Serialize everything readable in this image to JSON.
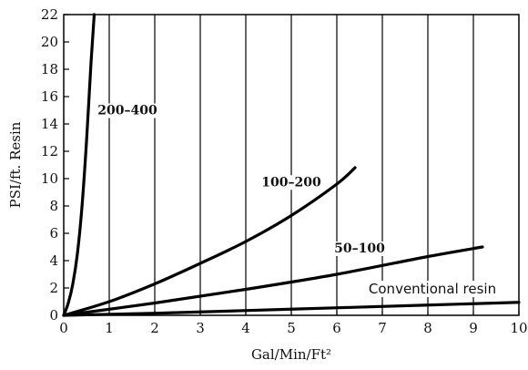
{
  "chart_data": {
    "type": "line",
    "xlabel": "Gal/Min/Ft²",
    "ylabel": "PSI/ft. Resin",
    "xlim": [
      0,
      10
    ],
    "ylim": [
      0,
      22
    ],
    "x_ticks": [
      0,
      1,
      2,
      3,
      4,
      5,
      6,
      7,
      8,
      9,
      10
    ],
    "y_ticks": [
      0,
      2,
      4,
      6,
      8,
      10,
      12,
      14,
      16,
      18,
      20,
      22
    ],
    "grid": "vertical",
    "series": [
      {
        "name": "200–400",
        "points": [
          [
            0,
            0
          ],
          [
            0.1,
            0.9
          ],
          [
            0.2,
            2.3
          ],
          [
            0.3,
            4.5
          ],
          [
            0.4,
            7.9
          ],
          [
            0.5,
            12.7
          ],
          [
            0.6,
            18.5
          ],
          [
            0.67,
            22
          ]
        ]
      },
      {
        "name": "100–200",
        "points": [
          [
            0,
            0
          ],
          [
            1,
            1.0
          ],
          [
            2,
            2.3
          ],
          [
            3,
            3.8
          ],
          [
            4,
            5.4
          ],
          [
            5,
            7.3
          ],
          [
            6,
            9.6
          ],
          [
            6.4,
            10.8
          ]
        ]
      },
      {
        "name": "50–100",
        "points": [
          [
            0,
            0
          ],
          [
            2,
            0.9
          ],
          [
            4,
            1.9
          ],
          [
            6,
            3.0
          ],
          [
            8,
            4.3
          ],
          [
            9.2,
            5.0
          ]
        ]
      },
      {
        "name": "Conventional resin",
        "points": [
          [
            0,
            0
          ],
          [
            2,
            0.15
          ],
          [
            5,
            0.45
          ],
          [
            8,
            0.75
          ],
          [
            10,
            0.95
          ]
        ]
      }
    ]
  }
}
